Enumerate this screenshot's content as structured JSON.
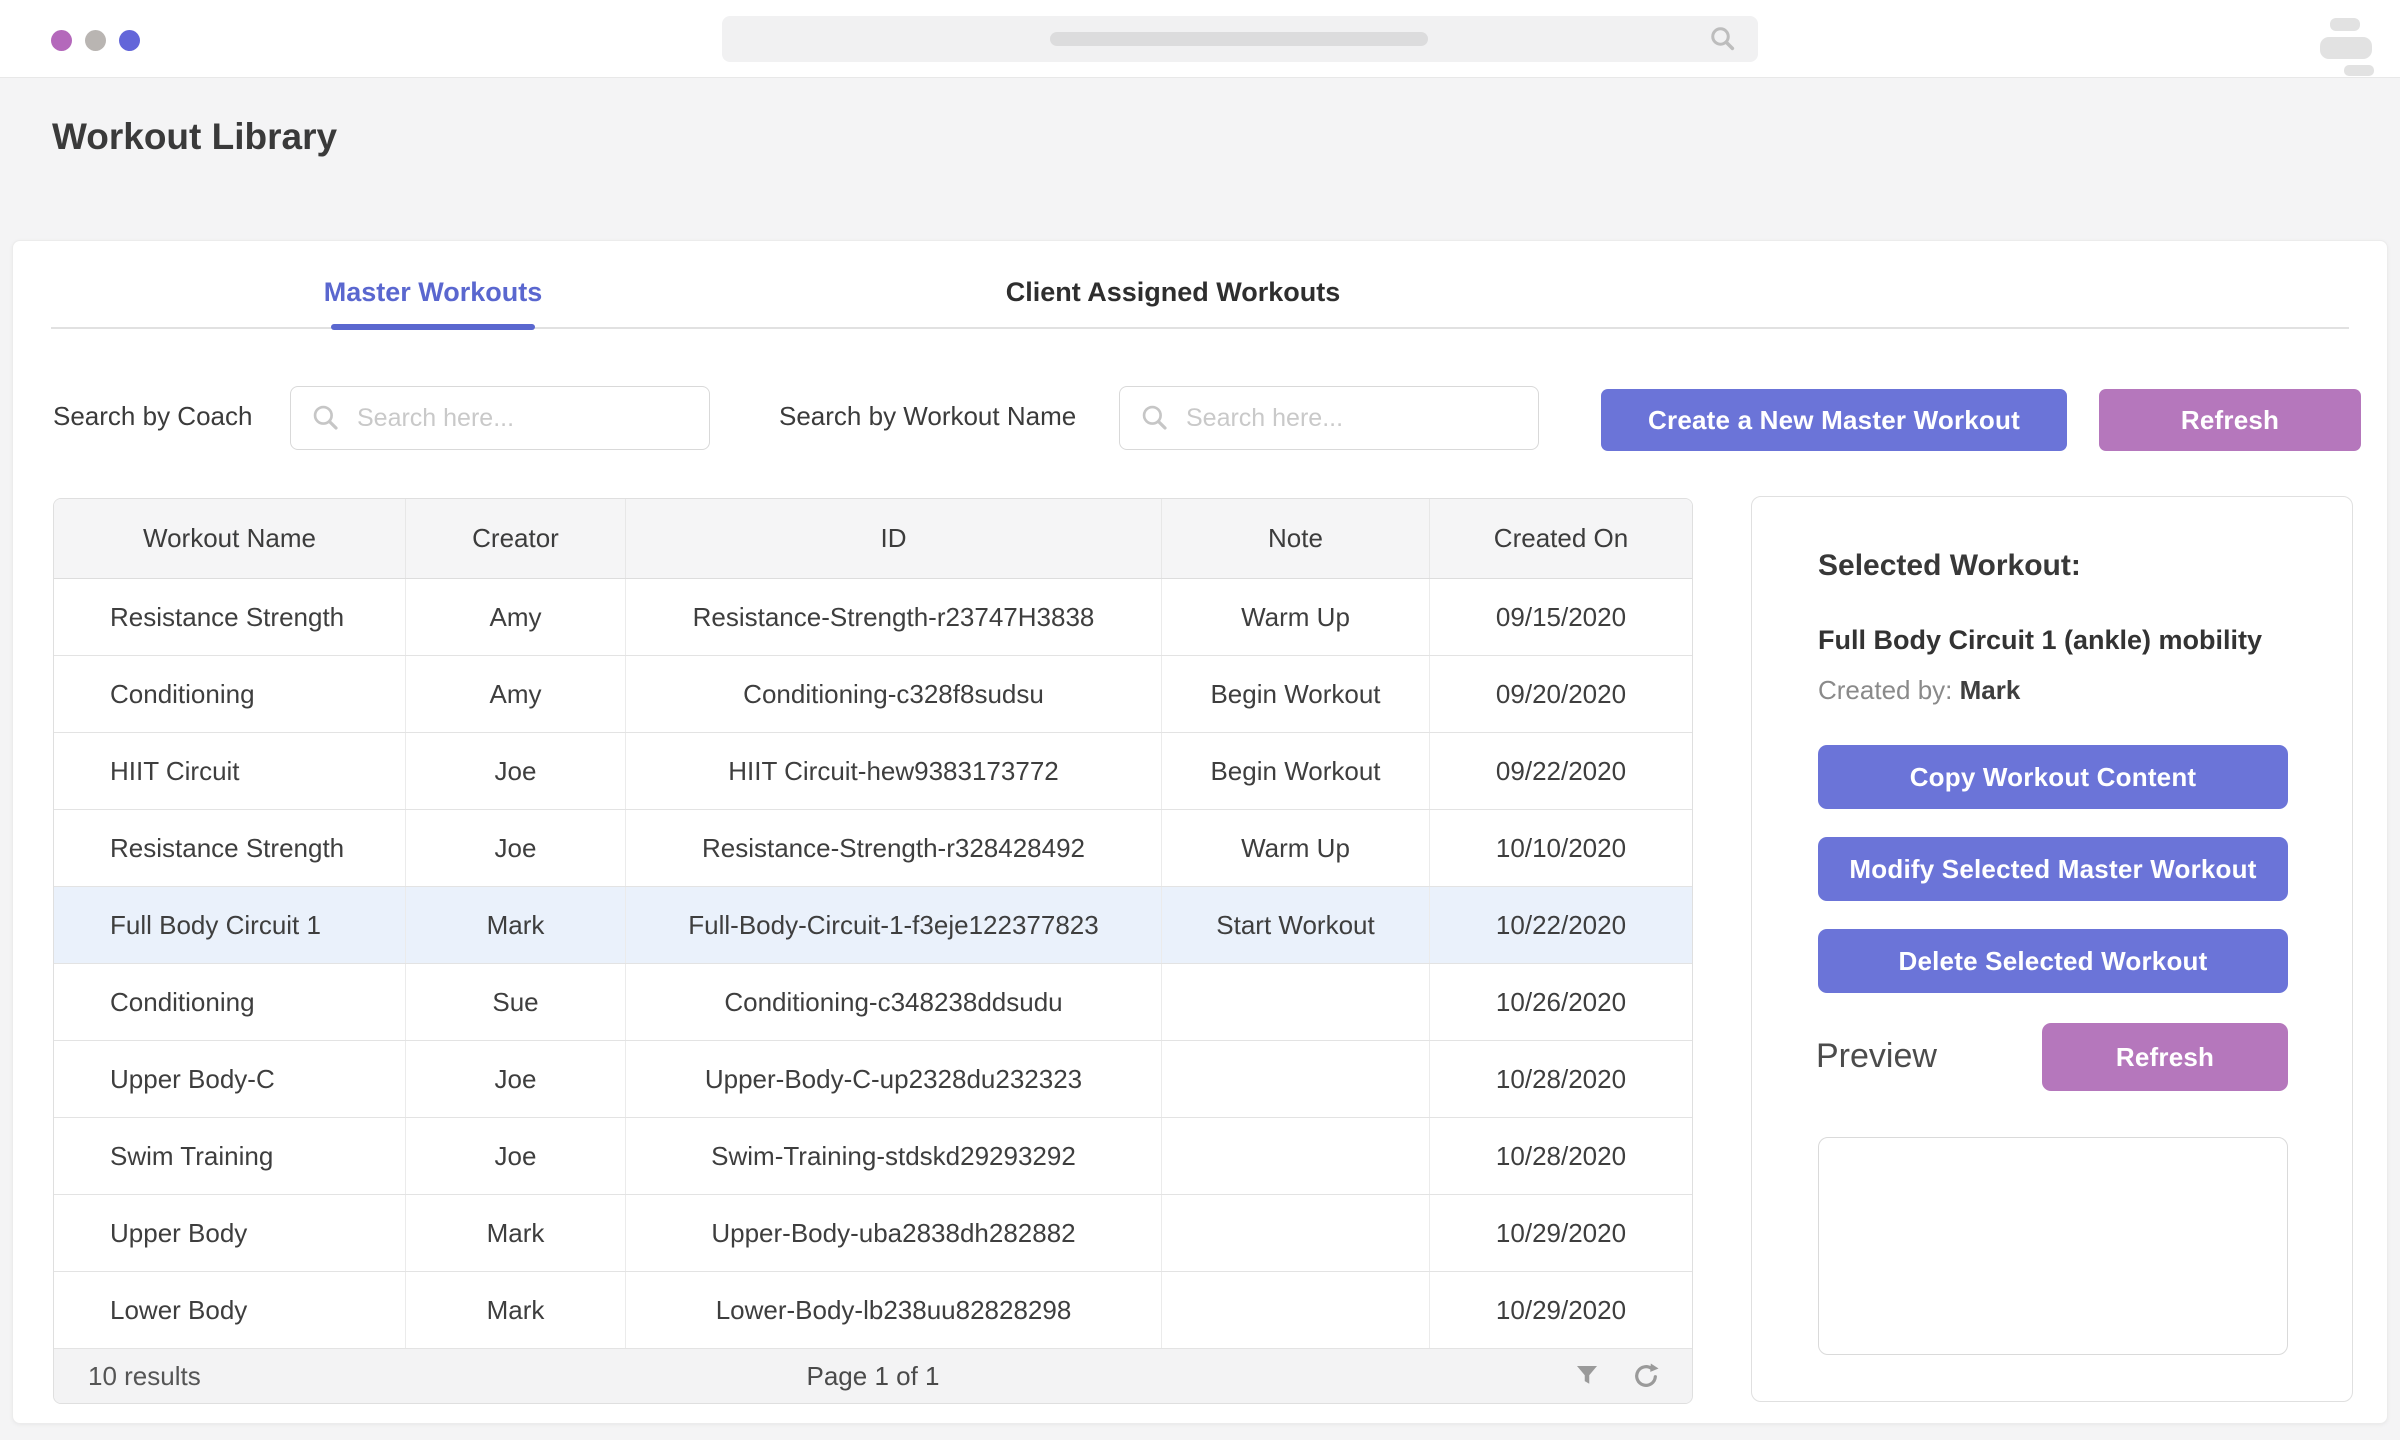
{
  "colors": {
    "dot_purple": "#B468BB",
    "dot_gray": "#B9B5B2",
    "dot_indigo": "#6366D9",
    "accent_indigo": "#6B74D8",
    "accent_purple": "#B577BC",
    "tab_active": "#5A67CF",
    "selected_row": "#EAF1FB"
  },
  "header": {
    "title": "Workout Library"
  },
  "tabs": [
    {
      "label": "Master Workouts",
      "active": true
    },
    {
      "label": "Client Assigned Workouts",
      "active": false
    }
  ],
  "filters": {
    "coach_label": "Search by Coach",
    "workout_label": "Search by Workout Name",
    "search_placeholder": "Search here...",
    "create_button": "Create a New Master Workout",
    "refresh_button": "Refresh"
  },
  "table": {
    "headers": [
      "Workout Name",
      "Creator",
      "ID",
      "Note",
      "Created On"
    ],
    "rows": [
      [
        "Resistance Strength",
        "Amy",
        "Resistance-Strength-r23747H3838",
        "Warm Up",
        "09/15/2020"
      ],
      [
        "Conditioning",
        "Amy",
        "Conditioning-c328f8sudsu",
        "Begin Workout",
        "09/20/2020"
      ],
      [
        "HIIT Circuit",
        "Joe",
        "HIIT Circuit-hew9383173772",
        "Begin Workout",
        "09/22/2020"
      ],
      [
        "Resistance Strength",
        "Joe",
        "Resistance-Strength-r328428492",
        "Warm Up",
        "10/10/2020"
      ],
      [
        "Full Body Circuit 1",
        "Mark",
        "Full-Body-Circuit-1-f3eje122377823",
        "Start Workout",
        "10/22/2020"
      ],
      [
        "Conditioning",
        "Sue",
        "Conditioning-c348238ddsudu",
        "",
        "10/26/2020"
      ],
      [
        "Upper Body-C",
        "Joe",
        "Upper-Body-C-up2328du232323",
        "",
        "10/28/2020"
      ],
      [
        "Swim Training",
        "Joe",
        "Swim-Training-stdskd29293292",
        "",
        "10/28/2020"
      ],
      [
        "Upper Body",
        "Mark",
        "Upper-Body-uba2838dh282882",
        "",
        "10/29/2020"
      ],
      [
        "Lower Body",
        "Mark",
        "Lower-Body-lb238uu82828298",
        "",
        "10/29/2020"
      ]
    ],
    "selected_row_index": 4,
    "footer": {
      "results": "10 results",
      "page": "Page 1 of 1"
    }
  },
  "panel": {
    "heading": "Selected Workout:",
    "workout_name": "Full Body Circuit 1 (ankle) mobility",
    "created_by_label": "Created by:",
    "created_by_value": "Mark",
    "copy_button": "Copy Workout Content",
    "modify_button": "Modify Selected Master Workout",
    "delete_button": "Delete Selected Workout",
    "preview_label": "Preview",
    "refresh_button": "Refresh"
  }
}
